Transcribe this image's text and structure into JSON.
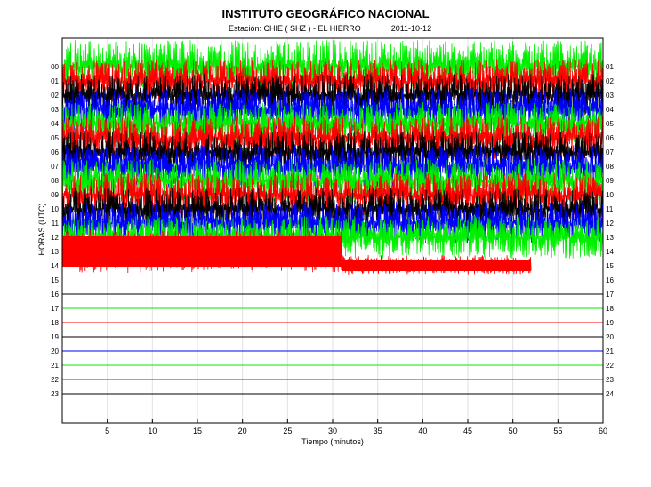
{
  "header": {
    "title": "INSTITUTO GEOGRÁFICO NACIONAL",
    "station_label": "Estación:  CHIE ( SHZ ) - EL HIERRO",
    "date": "2011-10-12"
  },
  "colors": {
    "trace_cycle": [
      "#000000",
      "#00ee00",
      "#ff0000",
      "#0000ff"
    ],
    "grid": "#e2e2e2",
    "frame": "#000000"
  },
  "chart_data": {
    "type": "line",
    "title": "INSTITUTO GEOGRÁFICO NACIONAL",
    "xlabel": "Tiempo (minutos)",
    "ylabel": "HORAS (UTC)",
    "xlim": [
      0,
      60
    ],
    "x_ticks": [
      5,
      10,
      15,
      20,
      25,
      30,
      35,
      40,
      45,
      50,
      55,
      60
    ],
    "left_hour_labels": [
      "00",
      "01",
      "02",
      "03",
      "04",
      "05",
      "06",
      "07",
      "08",
      "09",
      "10",
      "11",
      "12",
      "13",
      "14",
      "15",
      "16",
      "17",
      "18",
      "19",
      "20",
      "21",
      "22",
      "23"
    ],
    "right_hour_labels": [
      "01",
      "02",
      "03",
      "04",
      "05",
      "06",
      "07",
      "08",
      "09",
      "10",
      "11",
      "12",
      "13",
      "14",
      "15",
      "16",
      "17",
      "18",
      "19",
      "20",
      "21",
      "22",
      "23",
      "24"
    ],
    "grid": true,
    "series": [
      {
        "hour": 0,
        "color": "green",
        "amplitude": "saturated",
        "t_start": 0,
        "t_end": 60
      },
      {
        "hour": 1,
        "color": "red",
        "amplitude": "saturated",
        "t_start": 0,
        "t_end": 60
      },
      {
        "hour": 2,
        "color": "black",
        "amplitude": "saturated",
        "t_start": 0,
        "t_end": 60
      },
      {
        "hour": 3,
        "color": "blue",
        "amplitude": "saturated",
        "t_start": 0,
        "t_end": 60
      },
      {
        "hour": 4,
        "color": "green",
        "amplitude": "saturated",
        "t_start": 0,
        "t_end": 60
      },
      {
        "hour": 5,
        "color": "red",
        "amplitude": "saturated",
        "t_start": 0,
        "t_end": 60
      },
      {
        "hour": 6,
        "color": "black",
        "amplitude": "saturated",
        "t_start": 0,
        "t_end": 60
      },
      {
        "hour": 7,
        "color": "blue",
        "amplitude": "saturated",
        "t_start": 0,
        "t_end": 60
      },
      {
        "hour": 8,
        "color": "green",
        "amplitude": "saturated",
        "t_start": 0,
        "t_end": 60
      },
      {
        "hour": 9,
        "color": "red",
        "amplitude": "saturated",
        "t_start": 0,
        "t_end": 60
      },
      {
        "hour": 10,
        "color": "black",
        "amplitude": "saturated",
        "t_start": 0,
        "t_end": 60
      },
      {
        "hour": 11,
        "color": "blue",
        "amplitude": "saturated",
        "t_start": 0,
        "t_end": 60
      },
      {
        "hour": 12,
        "color": "green",
        "amplitude": "saturated",
        "t_start": 0,
        "t_end": 60
      },
      {
        "hour": 13,
        "color": "red",
        "amplitude": "saturated",
        "t_start": 0,
        "t_end": 31
      },
      {
        "hour": 14,
        "color": "red",
        "amplitude": "reduced",
        "t_start": 31,
        "t_end": 52
      },
      {
        "hour": 15,
        "color": "black",
        "amplitude": "flat",
        "t_start": 0,
        "t_end": 60
      },
      {
        "hour": 16,
        "color": "green",
        "amplitude": "flat",
        "t_start": 0,
        "t_end": 60
      },
      {
        "hour": 17,
        "color": "red",
        "amplitude": "flat",
        "t_start": 0,
        "t_end": 60
      },
      {
        "hour": 18,
        "color": "black",
        "amplitude": "flat",
        "t_start": 0,
        "t_end": 60
      },
      {
        "hour": 19,
        "color": "blue",
        "amplitude": "flat",
        "t_start": 0,
        "t_end": 60
      },
      {
        "hour": 20,
        "color": "green",
        "amplitude": "flat",
        "t_start": 0,
        "t_end": 60
      },
      {
        "hour": 21,
        "color": "red",
        "amplitude": "flat",
        "t_start": 0,
        "t_end": 60
      },
      {
        "hour": 22,
        "color": "black",
        "amplitude": "flat",
        "t_start": 0,
        "t_end": 60
      }
    ]
  }
}
